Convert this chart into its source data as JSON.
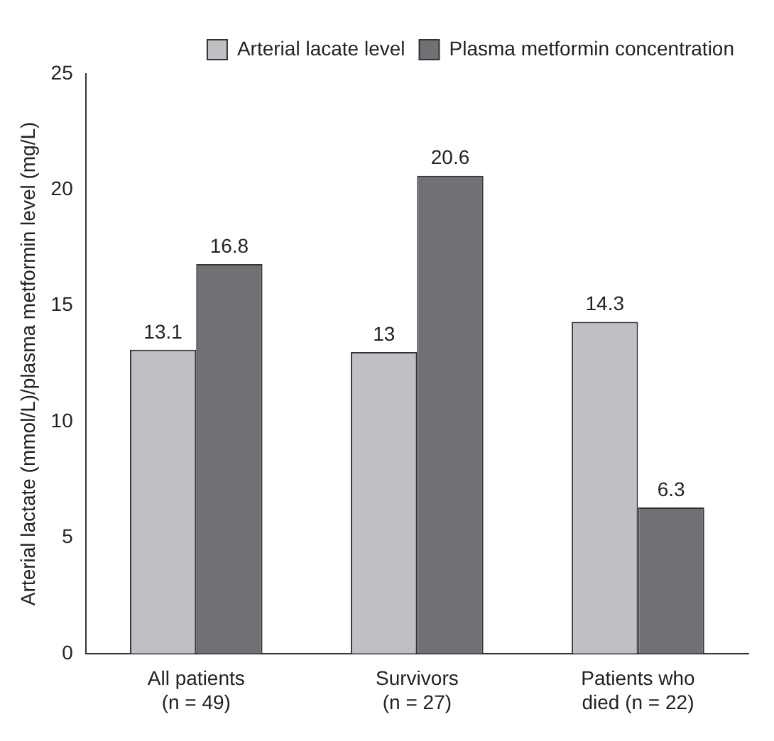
{
  "chart_data": {
    "type": "bar",
    "ylabel": "Arterial lactate (mmol/L)/plasma metformin level (mg/L)",
    "categories": [
      "All patients\n(n = 49)",
      "Survivors\n(n = 27)",
      "Patients who\ndied (n = 22)"
    ],
    "series": [
      {
        "name": "Arterial lacate level",
        "color": "#c0c0c4",
        "values": [
          13.1,
          13,
          14.3
        ]
      },
      {
        "name": "Plasma metformin concentration",
        "color": "#707075",
        "values": [
          16.8,
          20.6,
          6.3
        ]
      }
    ],
    "ylim": [
      0,
      25
    ],
    "yticks": [
      0,
      5,
      10,
      15,
      20,
      25
    ],
    "grid": false,
    "legend": "top right",
    "data_labels": true
  }
}
